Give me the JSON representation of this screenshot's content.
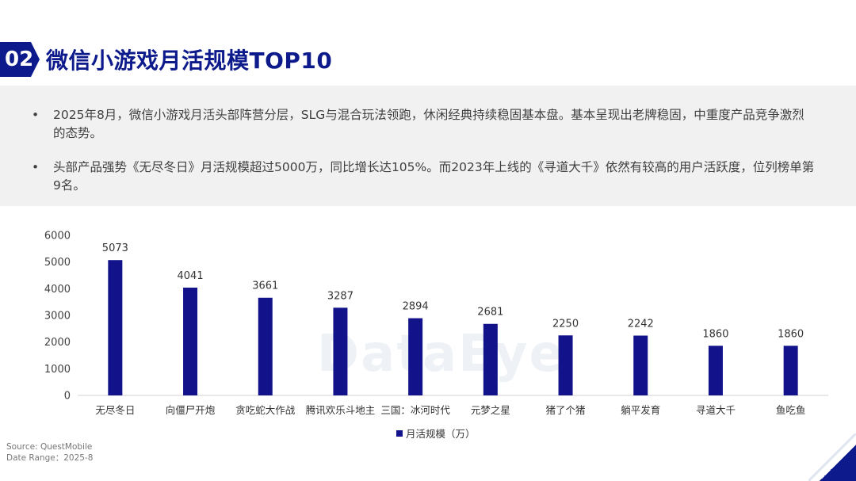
{
  "header": {
    "number": "02",
    "title": "微信小游戏月活规模TOP10"
  },
  "summary": {
    "bullets": [
      "2025年8月，微信小游戏月活头部阵营分层，SLG与混合玩法领跑，休闲经典持续稳固基本盘。基本呈现出老牌稳固，中重度产品竞争激烈的态势。",
      "头部产品强势《无尽冬日》月活规模超过5000万，同比增长达105%。而2023年上线的《寻道大千》依然有较高的用户活跃度，位列榜单第9名。"
    ],
    "bullet_symbol": "•"
  },
  "chart_data": {
    "type": "bar",
    "categories": [
      "无尽冬日",
      "向僵尸开炮",
      "贪吃蛇大作战",
      "腾讯欢乐斗地主",
      "三国：冰河时代",
      "元梦之星",
      "猪了个猪",
      "躺平发育",
      "寻道大千",
      "鱼吃鱼"
    ],
    "series": [
      {
        "name": "月活规模（万）",
        "values": [
          5073,
          4041,
          3661,
          3287,
          2894,
          2681,
          2250,
          2242,
          1860,
          1860
        ]
      }
    ],
    "yticks": [
      0,
      1000,
      2000,
      3000,
      4000,
      5000,
      6000
    ],
    "ylim": [
      0,
      6000
    ],
    "data_labels": true,
    "legend": "bottom-center",
    "grid": false,
    "bar_color": "#12128a"
  },
  "watermark": "DataEye",
  "footer": {
    "source": "Source: QuestMobile",
    "date_range": "Date Range：2025-8"
  },
  "colors": {
    "brand": "#0d1a8c",
    "summary_bg": "#f1f1f1"
  }
}
